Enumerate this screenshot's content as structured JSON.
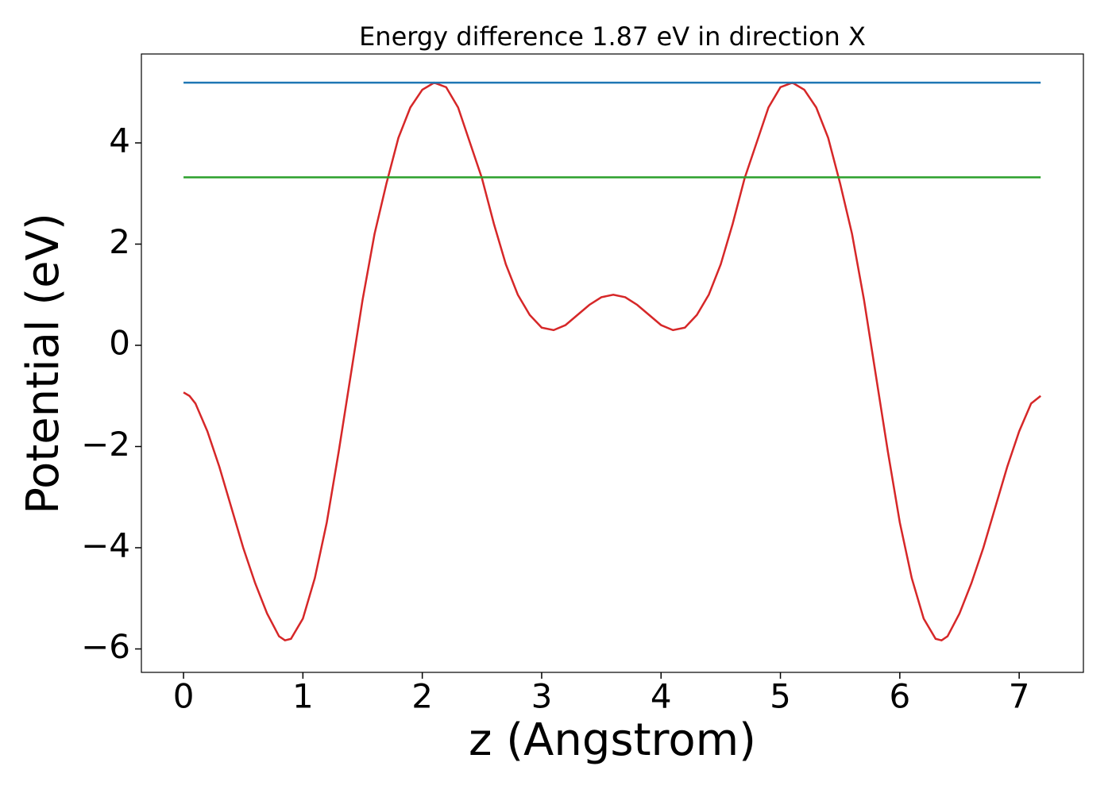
{
  "chart_data": {
    "type": "line",
    "title": "Energy difference 1.87 eV in direction X",
    "xlabel": "z (Angstrom)",
    "ylabel": "Potential (eV)",
    "xlim": [
      -0.353,
      7.538
    ],
    "ylim": [
      -6.463,
      5.757
    ],
    "xticks": [
      0,
      1,
      2,
      3,
      4,
      5,
      6,
      7
    ],
    "yticks": [
      {
        "value": -6,
        "label": "−6"
      },
      {
        "value": -4,
        "label": "−4"
      },
      {
        "value": -2,
        "label": "−2"
      },
      0,
      2,
      4
    ],
    "grid": false,
    "series": [
      {
        "color": "#d62728",
        "x": [
          0,
          0.05,
          0.1,
          0.2,
          0.3,
          0.4,
          0.5,
          0.6,
          0.7,
          0.8,
          0.85,
          0.9,
          1.0,
          1.1,
          1.2,
          1.3,
          1.4,
          1.5,
          1.6,
          1.7,
          1.8,
          1.9,
          2.0,
          2.1,
          2.2,
          2.3,
          2.4,
          2.5,
          2.6,
          2.7,
          2.8,
          2.9,
          3.0,
          3.1,
          3.2,
          3.3,
          3.4,
          3.5,
          3.6,
          3.7,
          3.8,
          3.9,
          4.0,
          4.1,
          4.2,
          4.3,
          4.4,
          4.5,
          4.6,
          4.7,
          4.8,
          4.9,
          5.0,
          5.1,
          5.2,
          5.3,
          5.4,
          5.5,
          5.6,
          5.7,
          5.8,
          5.9,
          6.0,
          6.1,
          6.2,
          6.3,
          6.35,
          6.4,
          6.5,
          6.6,
          6.7,
          6.8,
          6.9,
          7.0,
          7.1,
          7.18
        ],
        "values": [
          -0.93,
          -1.0,
          -1.15,
          -1.7,
          -2.4,
          -3.2,
          -4.0,
          -4.7,
          -5.3,
          -5.75,
          -5.83,
          -5.8,
          -5.4,
          -4.6,
          -3.5,
          -2.1,
          -0.6,
          0.9,
          2.2,
          3.2,
          4.1,
          4.7,
          5.05,
          5.19,
          5.1,
          4.7,
          4.0,
          3.3,
          2.4,
          1.6,
          1.0,
          0.6,
          0.35,
          0.3,
          0.4,
          0.6,
          0.8,
          0.95,
          1.0,
          0.95,
          0.8,
          0.6,
          0.4,
          0.3,
          0.35,
          0.6,
          1.0,
          1.6,
          2.4,
          3.3,
          4.0,
          4.7,
          5.1,
          5.19,
          5.05,
          4.7,
          4.1,
          3.2,
          2.2,
          0.9,
          -0.6,
          -2.1,
          -3.5,
          -4.6,
          -5.4,
          -5.8,
          -5.83,
          -5.75,
          -5.3,
          -4.7,
          -4.0,
          -3.2,
          -2.4,
          -1.7,
          -1.15,
          -1.0
        ]
      },
      {
        "color": "#1f77b4",
        "x": [
          0,
          7.18
        ],
        "values": [
          5.19,
          5.19
        ]
      },
      {
        "color": "#2ca02c",
        "x": [
          0,
          7.18
        ],
        "values": [
          3.32,
          3.32
        ]
      }
    ]
  }
}
